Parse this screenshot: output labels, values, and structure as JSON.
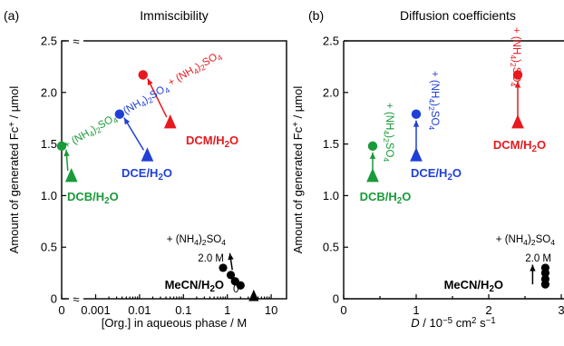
{
  "chart_data": [
    {
      "panel": "(a)",
      "type": "scatter",
      "title": "Immiscibility",
      "xlabel": "[Org.] in aqueous phase / M",
      "ylabel": "Amount of generated Fc⁺ / µmol",
      "x_scale": "log (with break after 0)",
      "xticks": [
        "0",
        "0.001",
        "0.01",
        "0.1",
        "1",
        "10"
      ],
      "yticks": [
        "0",
        "0.5",
        "1.0",
        "1.5",
        "2.0",
        "2.5"
      ],
      "ylim": [
        0,
        2.5
      ],
      "axis_break_symbol": "≈",
      "series": [
        {
          "name": "DCM/H₂O",
          "color": "#e8191e",
          "x_without": 0.05,
          "y_without": 1.7,
          "x_with": 0.012,
          "y_with": 2.17
        },
        {
          "name": "DCE/H₂O",
          "color": "#1f3fd6",
          "x_without": 0.015,
          "y_without": 1.38,
          "x_with": 0.0035,
          "y_with": 1.79
        },
        {
          "name": "DCB/H₂O",
          "color": "#1a9a3a",
          "x_without": 0.00028,
          "y_without": 1.18,
          "x_with": 0,
          "y_with": 1.48
        }
      ],
      "mecn": {
        "name": "MeCN/H₂O",
        "color": "#000000",
        "points": [
          {
            "x": 4,
            "y": 0.0,
            "marker": "triangle"
          },
          {
            "x": 2.0,
            "y": 0.13
          },
          {
            "x": 1.5,
            "y": 0.17
          },
          {
            "x": 1.2,
            "y": 0.23
          },
          {
            "x": 0.8,
            "y": 0.3
          }
        ],
        "start_label": "0",
        "end_label": "2.0 M"
      },
      "salt_label": "+ (NH₄)₂SO₄"
    },
    {
      "panel": "(b)",
      "type": "scatter",
      "title": "Diffusion coefficients",
      "xlabel": "D / 10⁻⁵ cm² s⁻¹",
      "ylabel": "Amount of generated Fc⁺ / µmol",
      "xticks": [
        "0",
        "1",
        "2",
        "3"
      ],
      "yticks": [
        "0",
        "0.5",
        "1.0",
        "1.5",
        "2.0",
        "2.5"
      ],
      "xlim": [
        0,
        3
      ],
      "ylim": [
        0,
        2.5
      ],
      "series": [
        {
          "name": "DCM/H₂O",
          "color": "#e8191e",
          "x": 2.4,
          "y_without": 1.7,
          "y_with": 2.17
        },
        {
          "name": "DCE/H₂O",
          "color": "#1f3fd6",
          "x": 1.0,
          "y_without": 1.38,
          "y_with": 1.79
        },
        {
          "name": "DCB/H₂O",
          "color": "#1a9a3a",
          "x": 0.4,
          "y_without": 1.18,
          "y_with": 1.48
        }
      ],
      "mecn": {
        "name": "MeCN/H₂O",
        "color": "#000000",
        "x": 2.78,
        "ys": [
          0.14,
          0.19,
          0.25,
          0.3
        ],
        "end_label": "2.0 M"
      },
      "salt_label": "+ (NH₄)₂SO₄"
    }
  ]
}
